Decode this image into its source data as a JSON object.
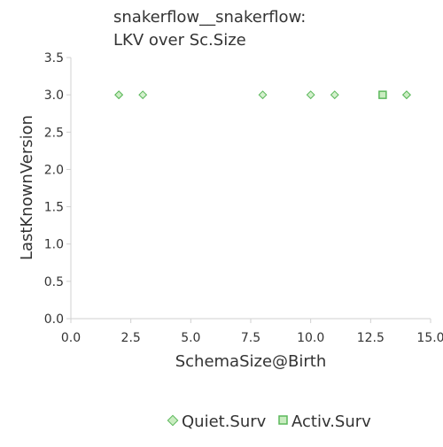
{
  "chart_data": {
    "type": "scatter",
    "title_lines": [
      "snakerflow__snakerflow:",
      "LKV over Sc.Size"
    ],
    "xlabel": "SchemaSize@Birth",
    "ylabel": "LastKnownVersion",
    "xlim": [
      0,
      15
    ],
    "ylim": [
      0,
      3.5
    ],
    "x_ticks": [
      0,
      2.5,
      5,
      7.5,
      10,
      12.5,
      15
    ],
    "x_tick_labels": [
      "0.0",
      "2.5",
      "5.0",
      "7.5",
      "10.0",
      "12.5",
      "15.0"
    ],
    "y_ticks": [
      0,
      0.5,
      1,
      1.5,
      2,
      2.5,
      3,
      3.5
    ],
    "y_tick_labels": [
      "0.0",
      "0.5",
      "1.0",
      "1.5",
      "2.0",
      "2.5",
      "3.0",
      "3.5"
    ],
    "grid": false,
    "legend_position": "bottom",
    "series": [
      {
        "name": "Quiet.Surv",
        "marker": "diamond",
        "color": "#5cb85c",
        "fill": "#c9ecc0",
        "points": [
          [
            2,
            3
          ],
          [
            2,
            3
          ],
          [
            3,
            3
          ],
          [
            8,
            3
          ],
          [
            10,
            3
          ],
          [
            11,
            3
          ],
          [
            14,
            3
          ],
          [
            14,
            3
          ]
        ]
      },
      {
        "name": "Activ.Surv",
        "marker": "square",
        "color": "#5cb85c",
        "fill": "#c9ecc0",
        "points": [
          [
            13,
            3
          ]
        ]
      }
    ]
  }
}
